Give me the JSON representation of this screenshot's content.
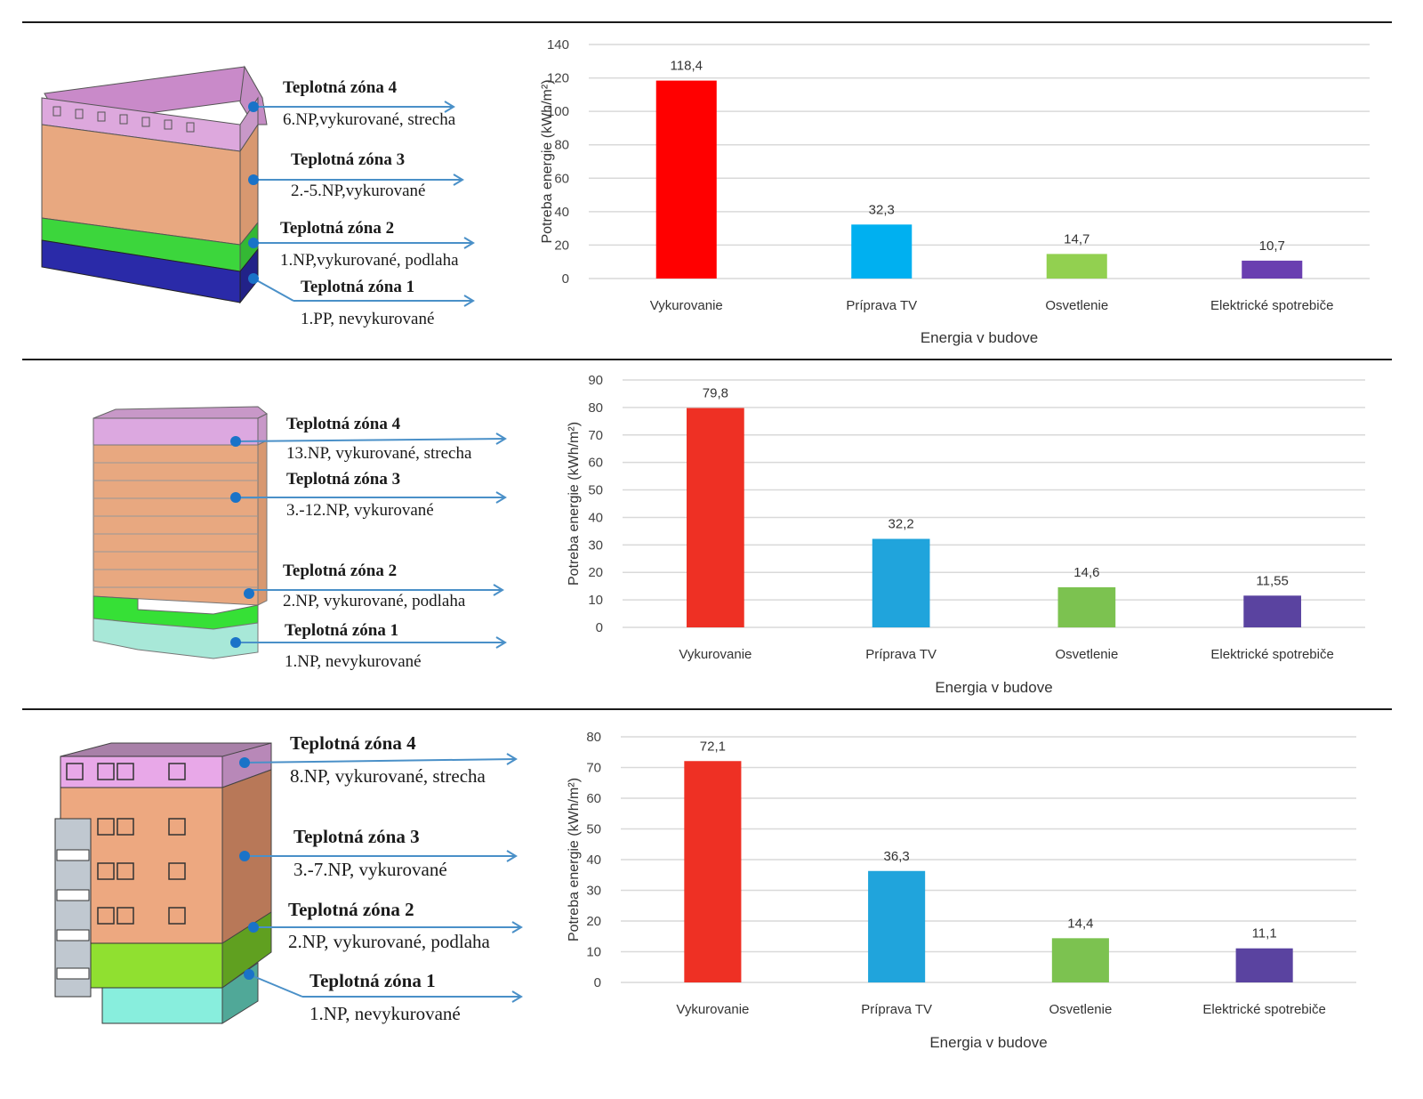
{
  "panels": [
    {
      "zones": [
        {
          "title": "Teplotná zóna 4",
          "desc": "6.NP,vykurované, strecha"
        },
        {
          "title": "Teplotná zóna 3",
          "desc": "2.-5.NP,vykurované"
        },
        {
          "title": "Teplotná zóna 2",
          "desc": "1.NP,vykurované, podlaha"
        },
        {
          "title": "Teplotná zóna 1",
          "desc": "1.PP, nevykurované"
        }
      ]
    },
    {
      "zones": [
        {
          "title": "Teplotná zóna 4",
          "desc": "13.NP, vykurované, strecha"
        },
        {
          "title": "Teplotná zóna 3",
          "desc": "3.-12.NP, vykurované"
        },
        {
          "title": "Teplotná zóna 2",
          "desc": "2.NP, vykurované, podlaha"
        },
        {
          "title": "Teplotná zóna 1",
          "desc": "1.NP, nevykurované"
        }
      ]
    },
    {
      "zones": [
        {
          "title": "Teplotná zóna 4",
          "desc": "8.NP, vykurované, strecha"
        },
        {
          "title": "Teplotná zóna 3",
          "desc": "3.-7.NP, vykurované"
        },
        {
          "title": "Teplotná zóna 2",
          "desc": "2.NP, vykurované, podlaha"
        },
        {
          "title": "Teplotná zóna 1",
          "desc": "1.NP, nevykurované"
        }
      ]
    }
  ],
  "colors": {
    "vykurovanie": "#ff0000",
    "priprava_tv": "#00b0f0",
    "osvetlenie": "#92d050",
    "elektricke": "#7030a0",
    "zone4": "#d9a0d9",
    "zone3": "#e8a57f",
    "zone2": "#44dd44",
    "zone1_a": "#2a2aa8",
    "zone1_b": "#80e0d0",
    "arrow": "#4a90c8"
  },
  "chart_data": [
    {
      "type": "bar",
      "title": "",
      "categories": [
        "Vykurovanie",
        "Príprava TV",
        "Osvetlenie",
        "Elektrické spotrebiče"
      ],
      "values": [
        118.4,
        32.3,
        14.7,
        10.7
      ],
      "data_labels": [
        "118,4",
        "32,3",
        "14,7",
        "10,7"
      ],
      "bar_colors": [
        "#ff0000",
        "#00b0f0",
        "#92d050",
        "#6a3fb0"
      ],
      "xlabel": "Energia v budove",
      "ylabel": "Potreba energie (kWh/m²)",
      "ylim": [
        0,
        140
      ],
      "yticks": [
        0,
        20,
        40,
        60,
        80,
        100,
        120,
        140
      ],
      "grid": true
    },
    {
      "type": "bar",
      "title": "",
      "categories": [
        "Vykurovanie",
        "Príprava TV",
        "Osvetlenie",
        "Elektrické spotrebiče"
      ],
      "values": [
        79.8,
        32.2,
        14.6,
        11.55
      ],
      "data_labels": [
        "79,8",
        "32,2",
        "14,6",
        "11,55"
      ],
      "bar_colors": [
        "#ee3024",
        "#20a4dc",
        "#7cc250",
        "#5a43a0"
      ],
      "xlabel": "Energia v budove",
      "ylabel": "Potreba energie (kWh/m²)",
      "ylim": [
        0,
        90
      ],
      "yticks": [
        0,
        10,
        20,
        30,
        40,
        50,
        60,
        70,
        80,
        90
      ],
      "grid": true
    },
    {
      "type": "bar",
      "title": "",
      "categories": [
        "Vykurovanie",
        "Príprava TV",
        "Osvetlenie",
        "Elektrické spotrebiče"
      ],
      "values": [
        72.1,
        36.3,
        14.4,
        11.1
      ],
      "data_labels": [
        "72,1",
        "36,3",
        "14,4",
        "11,1"
      ],
      "bar_colors": [
        "#ee3024",
        "#20a4dc",
        "#7cc250",
        "#5a43a0"
      ],
      "xlabel": "Energia v budove",
      "ylabel": "Potreba energie (kWh/m²)",
      "ylim": [
        0,
        80
      ],
      "yticks": [
        0,
        10,
        20,
        30,
        40,
        50,
        60,
        70,
        80
      ],
      "grid": true
    }
  ]
}
